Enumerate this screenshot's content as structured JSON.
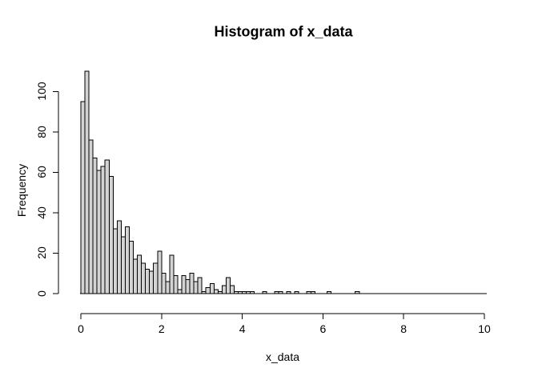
{
  "window": {
    "background": "#ffffff"
  },
  "chart_data": {
    "type": "bar",
    "subtype": "histogram",
    "title": "Histogram of x_data",
    "xlabel": "x_data",
    "ylabel": "Frequency",
    "bin_start": 0,
    "bin_width": 0.1,
    "counts": [
      95,
      110,
      76,
      67,
      61,
      63,
      66,
      58,
      32,
      36,
      28,
      33,
      26,
      17,
      19,
      15,
      12,
      11,
      15,
      21,
      10,
      6,
      19,
      9,
      2,
      9,
      7,
      10,
      6,
      8,
      1,
      3,
      5,
      2,
      1,
      4,
      8,
      4,
      1,
      1,
      1,
      1,
      1,
      0,
      0,
      1,
      0,
      0,
      1,
      1,
      0,
      1,
      0,
      1,
      0,
      0,
      1,
      1,
      0,
      0,
      0,
      1,
      0,
      0,
      0,
      0,
      0,
      0,
      1,
      0,
      0,
      0,
      0,
      0,
      0,
      0,
      0,
      0,
      0,
      0,
      0,
      0,
      0,
      0,
      0,
      0,
      0,
      0,
      0,
      0,
      0,
      0,
      0,
      0,
      0,
      0,
      0,
      0,
      0,
      0
    ],
    "x_ticks": [
      0,
      2,
      4,
      6,
      8,
      10
    ],
    "y_ticks": [
      0,
      20,
      40,
      60,
      80,
      100
    ],
    "xlim": [
      0,
      10
    ],
    "ylim": [
      0,
      110
    ],
    "grid": "off",
    "legend": "none",
    "bar_fill": "#d3d3d3",
    "bar_stroke": "#000000",
    "axis_color": "#000000",
    "text_color": "#000000"
  }
}
